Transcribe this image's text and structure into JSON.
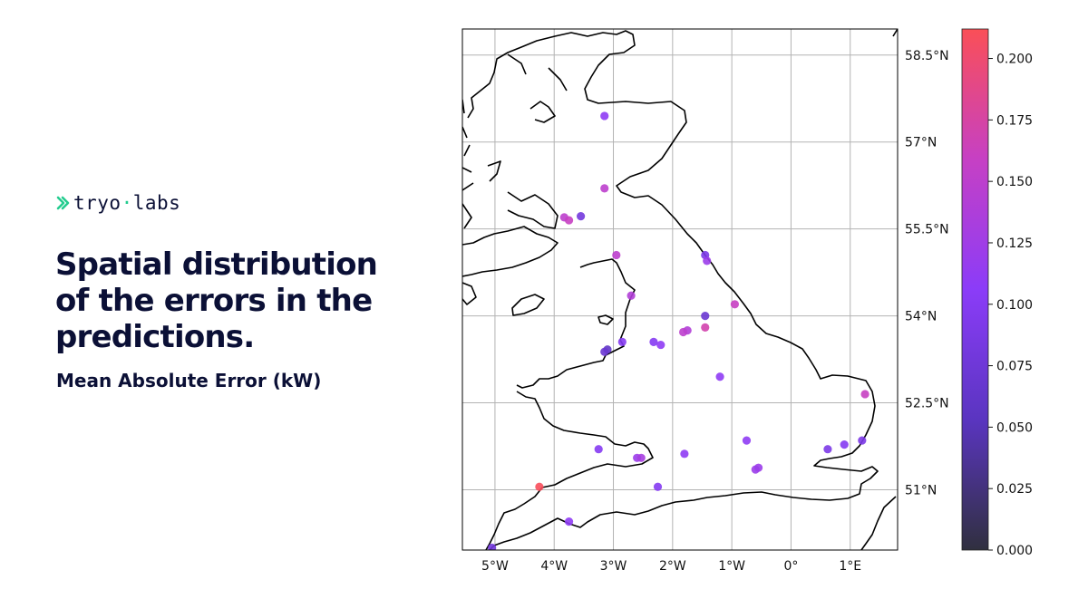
{
  "brand": {
    "left": "tryo",
    "right": "labs",
    "logo_icon": "chevron-link-icon",
    "accent": "#24cc8f"
  },
  "title": "Spatial distribution of the errors in the predictions.",
  "subtitle": "Mean Absolute Error (kW)",
  "chart_data": {
    "type": "scatter",
    "projection": "PlateCarree",
    "grid": true,
    "x_axis": {
      "ticks": [
        -5,
        -4,
        -3,
        -2,
        -1,
        0,
        1
      ],
      "labels": [
        "5°W",
        "4°W",
        "3°W",
        "2°W",
        "1°W",
        "0°",
        "1°E"
      ],
      "range": [
        -5.55,
        1.8
      ]
    },
    "y_axis": {
      "ticks": [
        51,
        52.5,
        54,
        55.5,
        57,
        58.5
      ],
      "labels": [
        "51°N",
        "52.5°N",
        "54°N",
        "55.5°N",
        "57°N",
        "58.5°N"
      ],
      "range": [
        49.96,
        58.95
      ],
      "position": "right"
    },
    "colorbar": {
      "ticks": [
        0,
        0.025,
        0.05,
        0.075,
        0.1,
        0.125,
        0.15,
        0.175,
        0.2
      ],
      "labels": [
        "0.000",
        "0.025",
        "0.050",
        "0.075",
        "0.100",
        "0.125",
        "0.150",
        "0.175",
        "0.200"
      ],
      "range": [
        0,
        0.212
      ],
      "colors": [
        "#30303f",
        "#5a35c0",
        "#8b3cf8",
        "#c640c4",
        "#fa4f57"
      ]
    },
    "points": [
      {
        "lon": -3.15,
        "lat": 57.45,
        "err": 0.11
      },
      {
        "lon": -3.15,
        "lat": 56.2,
        "err": 0.15
      },
      {
        "lon": -3.55,
        "lat": 55.72,
        "err": 0.08
      },
      {
        "lon": -3.83,
        "lat": 55.7,
        "err": 0.15
      },
      {
        "lon": -3.75,
        "lat": 55.65,
        "err": 0.16
      },
      {
        "lon": -2.95,
        "lat": 55.05,
        "err": 0.15
      },
      {
        "lon": -1.45,
        "lat": 55.05,
        "err": 0.09
      },
      {
        "lon": -1.42,
        "lat": 54.95,
        "err": 0.12
      },
      {
        "lon": -2.7,
        "lat": 54.35,
        "err": 0.14
      },
      {
        "lon": -0.95,
        "lat": 54.2,
        "err": 0.16
      },
      {
        "lon": -1.45,
        "lat": 54.0,
        "err": 0.07
      },
      {
        "lon": -1.45,
        "lat": 53.8,
        "err": 0.17
      },
      {
        "lon": -1.75,
        "lat": 53.75,
        "err": 0.14
      },
      {
        "lon": -1.82,
        "lat": 53.72,
        "err": 0.15
      },
      {
        "lon": -2.32,
        "lat": 53.55,
        "err": 0.1
      },
      {
        "lon": -2.2,
        "lat": 53.5,
        "err": 0.11
      },
      {
        "lon": -2.85,
        "lat": 53.55,
        "err": 0.1
      },
      {
        "lon": -3.1,
        "lat": 53.42,
        "err": 0.06
      },
      {
        "lon": -3.15,
        "lat": 53.38,
        "err": 0.07
      },
      {
        "lon": -1.2,
        "lat": 52.95,
        "err": 0.11
      },
      {
        "lon": 1.25,
        "lat": 52.65,
        "err": 0.16
      },
      {
        "lon": -3.25,
        "lat": 51.7,
        "err": 0.1
      },
      {
        "lon": -2.6,
        "lat": 51.55,
        "err": 0.12
      },
      {
        "lon": -2.53,
        "lat": 51.55,
        "err": 0.13
      },
      {
        "lon": -1.8,
        "lat": 51.62,
        "err": 0.11
      },
      {
        "lon": -0.75,
        "lat": 51.85,
        "err": 0.11
      },
      {
        "lon": -0.6,
        "lat": 51.35,
        "err": 0.12
      },
      {
        "lon": -0.55,
        "lat": 51.38,
        "err": 0.12
      },
      {
        "lon": -2.25,
        "lat": 51.05,
        "err": 0.1
      },
      {
        "lon": 0.62,
        "lat": 51.7,
        "err": 0.09
      },
      {
        "lon": 0.9,
        "lat": 51.78,
        "err": 0.1
      },
      {
        "lon": 1.2,
        "lat": 51.85,
        "err": 0.09
      },
      {
        "lon": -4.25,
        "lat": 51.05,
        "err": 0.21
      },
      {
        "lon": -3.75,
        "lat": 50.45,
        "err": 0.11
      },
      {
        "lon": -5.05,
        "lat": 50.0,
        "err": 0.08
      }
    ]
  }
}
